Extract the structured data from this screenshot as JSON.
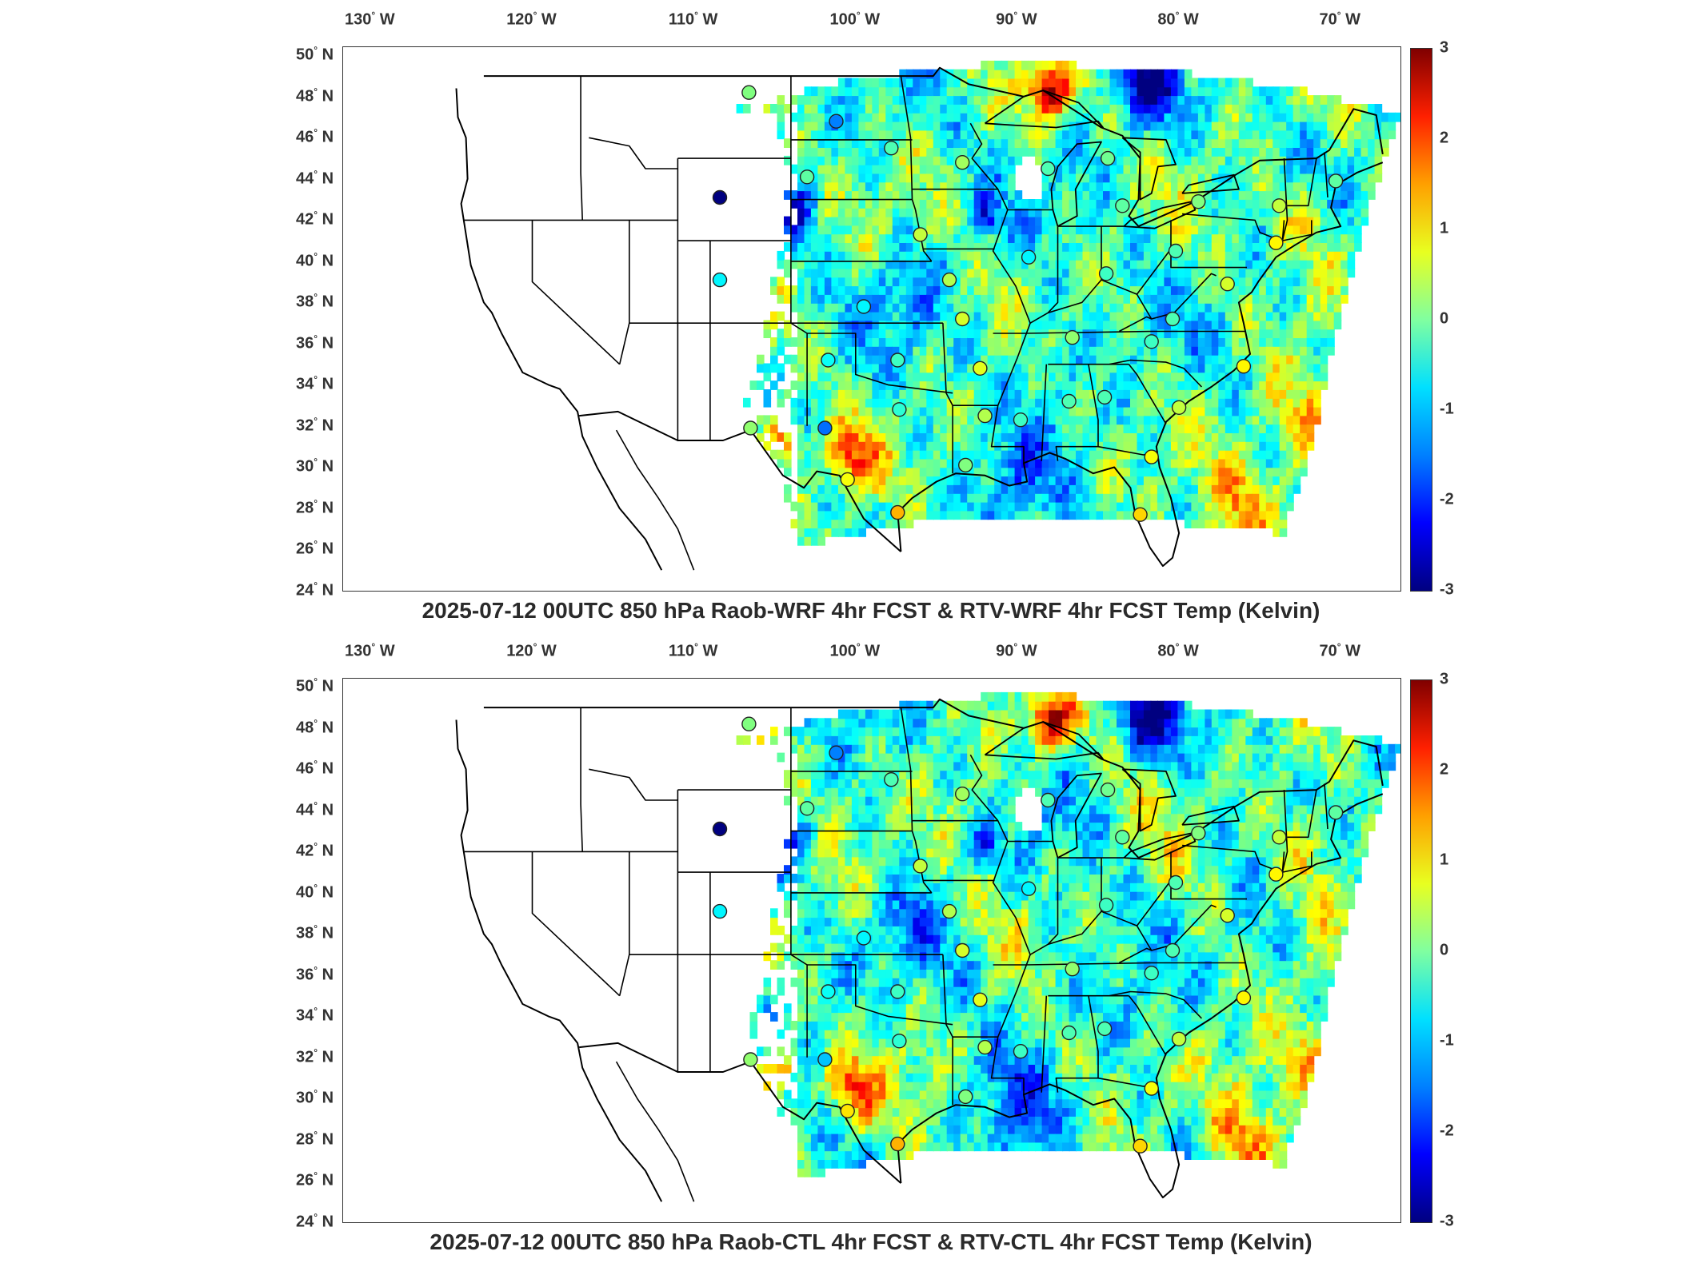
{
  "lon_labels": [
    {
      "deg": "130",
      "hemi": "W"
    },
    {
      "deg": "120",
      "hemi": "W"
    },
    {
      "deg": "110",
      "hemi": "W"
    },
    {
      "deg": "100",
      "hemi": "W"
    },
    {
      "deg": "90",
      "hemi": "W"
    },
    {
      "deg": "80",
      "hemi": "W"
    },
    {
      "deg": "70",
      "hemi": "W"
    }
  ],
  "lat_labels": [
    {
      "deg": "50",
      "hemi": "N"
    },
    {
      "deg": "48",
      "hemi": "N"
    },
    {
      "deg": "46",
      "hemi": "N"
    },
    {
      "deg": "44",
      "hemi": "N"
    },
    {
      "deg": "42",
      "hemi": "N"
    },
    {
      "deg": "40",
      "hemi": "N"
    },
    {
      "deg": "38",
      "hemi": "N"
    },
    {
      "deg": "36",
      "hemi": "N"
    },
    {
      "deg": "34",
      "hemi": "N"
    },
    {
      "deg": "32",
      "hemi": "N"
    },
    {
      "deg": "30",
      "hemi": "N"
    },
    {
      "deg": "28",
      "hemi": "N"
    },
    {
      "deg": "26",
      "hemi": "N"
    },
    {
      "deg": "24",
      "hemi": "N"
    }
  ],
  "colorbar": {
    "min": -3,
    "max": 3,
    "ticks": [
      "3",
      "2",
      "1",
      "0",
      "-1",
      "-2",
      "-3"
    ],
    "colormap": "jet"
  },
  "panels": [
    {
      "title": "2025-07-12 00UTC 850 hPa Raob-WRF 4hr FCST & RTV-WRF 4hr FCST Temp (Kelvin)",
      "field_variant": 0,
      "stations": [
        {
          "lon": -106.6,
          "lat": 48.2,
          "value": 0.0
        },
        {
          "lon": -101.2,
          "lat": 46.8,
          "value": -1.5
        },
        {
          "lon": -97.8,
          "lat": 45.5,
          "value": -0.3
        },
        {
          "lon": -93.4,
          "lat": 44.8,
          "value": 0.2
        },
        {
          "lon": -103.0,
          "lat": 44.1,
          "value": -0.2
        },
        {
          "lon": -108.4,
          "lat": 43.1,
          "value": -3.0
        },
        {
          "lon": -108.4,
          "lat": 39.1,
          "value": -0.8
        },
        {
          "lon": -96.0,
          "lat": 41.3,
          "value": 0.4
        },
        {
          "lon": -94.2,
          "lat": 39.1,
          "value": 0.3
        },
        {
          "lon": -89.3,
          "lat": 40.2,
          "value": -0.8
        },
        {
          "lon": -99.5,
          "lat": 37.8,
          "value": -0.8
        },
        {
          "lon": -93.4,
          "lat": 37.2,
          "value": 0.5
        },
        {
          "lon": -101.7,
          "lat": 35.2,
          "value": -0.7
        },
        {
          "lon": -97.4,
          "lat": 35.2,
          "value": -0.4
        },
        {
          "lon": -92.3,
          "lat": 34.8,
          "value": 0.6
        },
        {
          "lon": -97.3,
          "lat": 32.8,
          "value": -0.5
        },
        {
          "lon": -92.0,
          "lat": 32.5,
          "value": 0.3
        },
        {
          "lon": -106.5,
          "lat": 31.9,
          "value": 0.1
        },
        {
          "lon": -101.9,
          "lat": 31.9,
          "value": -1.6
        },
        {
          "lon": -100.5,
          "lat": 29.4,
          "value": 0.7
        },
        {
          "lon": -97.4,
          "lat": 27.8,
          "value": 1.2
        },
        {
          "lon": -93.2,
          "lat": 30.1,
          "value": 0.0
        },
        {
          "lon": -89.8,
          "lat": 32.3,
          "value": -0.4
        },
        {
          "lon": -86.8,
          "lat": 33.2,
          "value": -0.3
        },
        {
          "lon": -84.6,
          "lat": 33.4,
          "value": -0.3
        },
        {
          "lon": -86.6,
          "lat": 36.3,
          "value": 0.1
        },
        {
          "lon": -81.7,
          "lat": 36.1,
          "value": -0.4
        },
        {
          "lon": -84.5,
          "lat": 39.4,
          "value": -0.4
        },
        {
          "lon": -80.2,
          "lat": 40.5,
          "value": -0.3
        },
        {
          "lon": -80.4,
          "lat": 37.2,
          "value": -0.3
        },
        {
          "lon": -83.5,
          "lat": 42.7,
          "value": -0.2
        },
        {
          "lon": -84.4,
          "lat": 45.0,
          "value": -0.1
        },
        {
          "lon": -88.1,
          "lat": 44.5,
          "value": -0.3
        },
        {
          "lon": -78.8,
          "lat": 42.9,
          "value": 0.0
        },
        {
          "lon": -73.8,
          "lat": 42.7,
          "value": 0.4
        },
        {
          "lon": -77.0,
          "lat": 38.9,
          "value": 0.5
        },
        {
          "lon": -76.0,
          "lat": 34.9,
          "value": 0.8
        },
        {
          "lon": -80.0,
          "lat": 32.9,
          "value": 0.4
        },
        {
          "lon": -81.7,
          "lat": 30.5,
          "value": 0.7
        },
        {
          "lon": -82.4,
          "lat": 27.7,
          "value": 1.0
        },
        {
          "lon": -74.0,
          "lat": 40.9,
          "value": 0.8
        },
        {
          "lon": -70.3,
          "lat": 43.9,
          "value": -0.2
        }
      ]
    },
    {
      "title": "2025-07-12 00UTC 850 hPa Raob-CTL 4hr FCST & RTV-CTL 4hr FCST Temp (Kelvin)",
      "field_variant": 1,
      "stations": [
        {
          "lon": -106.6,
          "lat": 48.2,
          "value": 0.0
        },
        {
          "lon": -101.2,
          "lat": 46.8,
          "value": -1.5
        },
        {
          "lon": -97.8,
          "lat": 45.5,
          "value": -0.3
        },
        {
          "lon": -93.4,
          "lat": 44.8,
          "value": 0.2
        },
        {
          "lon": -103.0,
          "lat": 44.1,
          "value": -0.2
        },
        {
          "lon": -108.4,
          "lat": 43.1,
          "value": -3.0
        },
        {
          "lon": -108.4,
          "lat": 39.1,
          "value": -0.8
        },
        {
          "lon": -96.0,
          "lat": 41.3,
          "value": 0.4
        },
        {
          "lon": -94.2,
          "lat": 39.1,
          "value": 0.3
        },
        {
          "lon": -89.3,
          "lat": 40.2,
          "value": -0.8
        },
        {
          "lon": -99.5,
          "lat": 37.8,
          "value": -0.8
        },
        {
          "lon": -93.4,
          "lat": 37.2,
          "value": 0.5
        },
        {
          "lon": -101.7,
          "lat": 35.2,
          "value": -0.7
        },
        {
          "lon": -97.4,
          "lat": 35.2,
          "value": -0.4
        },
        {
          "lon": -92.3,
          "lat": 34.8,
          "value": 0.6
        },
        {
          "lon": -97.3,
          "lat": 32.8,
          "value": -0.5
        },
        {
          "lon": -92.0,
          "lat": 32.5,
          "value": 0.3
        },
        {
          "lon": -106.5,
          "lat": 31.9,
          "value": 0.1
        },
        {
          "lon": -101.9,
          "lat": 31.9,
          "value": -1.1
        },
        {
          "lon": -100.5,
          "lat": 29.4,
          "value": 0.9
        },
        {
          "lon": -97.4,
          "lat": 27.8,
          "value": 1.2
        },
        {
          "lon": -93.2,
          "lat": 30.1,
          "value": 0.0
        },
        {
          "lon": -89.8,
          "lat": 32.3,
          "value": -0.4
        },
        {
          "lon": -86.8,
          "lat": 33.2,
          "value": -0.3
        },
        {
          "lon": -84.6,
          "lat": 33.4,
          "value": -0.3
        },
        {
          "lon": -86.6,
          "lat": 36.3,
          "value": 0.1
        },
        {
          "lon": -81.7,
          "lat": 36.1,
          "value": -0.4
        },
        {
          "lon": -84.5,
          "lat": 39.4,
          "value": -0.4
        },
        {
          "lon": -80.2,
          "lat": 40.5,
          "value": -0.3
        },
        {
          "lon": -80.4,
          "lat": 37.2,
          "value": -0.3
        },
        {
          "lon": -83.5,
          "lat": 42.7,
          "value": -0.2
        },
        {
          "lon": -84.4,
          "lat": 45.0,
          "value": -0.1
        },
        {
          "lon": -88.1,
          "lat": 44.5,
          "value": -0.3
        },
        {
          "lon": -78.8,
          "lat": 42.9,
          "value": 0.0
        },
        {
          "lon": -73.8,
          "lat": 42.7,
          "value": 0.4
        },
        {
          "lon": -77.0,
          "lat": 38.9,
          "value": 0.5
        },
        {
          "lon": -76.0,
          "lat": 34.9,
          "value": 0.8
        },
        {
          "lon": -80.0,
          "lat": 32.9,
          "value": 0.4
        },
        {
          "lon": -81.7,
          "lat": 30.5,
          "value": 0.7
        },
        {
          "lon": -82.4,
          "lat": 27.7,
          "value": 1.0
        },
        {
          "lon": -74.0,
          "lat": 40.9,
          "value": 0.8
        },
        {
          "lon": -70.3,
          "lat": 43.9,
          "value": -0.2
        }
      ]
    }
  ]
}
